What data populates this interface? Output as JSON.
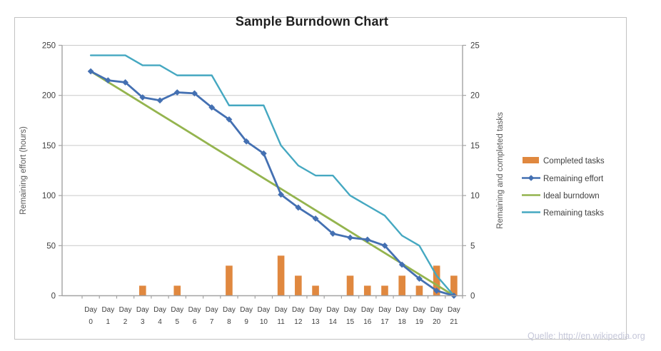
{
  "chart_data": {
    "type": "combo",
    "title": "Sample Burndown Chart",
    "ylabel_left": "Remaining effort (hours)",
    "ylabel_right": "Remaining and completed tasks",
    "categories": [
      "Day 0",
      "Day 1",
      "Day 2",
      "Day 3",
      "Day 4",
      "Day 5",
      "Day 6",
      "Day 7",
      "Day 8",
      "Day 9",
      "Day 10",
      "Day 11",
      "Day 12",
      "Day 13",
      "Day 14",
      "Day 15",
      "Day 16",
      "Day 17",
      "Day 18",
      "Day 19",
      "Day 20",
      "Day 21"
    ],
    "ylim_left": [
      0,
      250
    ],
    "yticks_left": [
      0,
      50,
      100,
      150,
      200,
      250
    ],
    "ylim_right": [
      0,
      25
    ],
    "yticks_right": [
      0,
      5,
      10,
      15,
      20,
      25
    ],
    "grid": true,
    "legend_position": "right",
    "series": [
      {
        "name": "Completed tasks",
        "type": "bar",
        "axis": "right",
        "color": "#e0883f",
        "values": [
          0,
          0,
          0,
          1,
          0,
          1,
          0,
          0,
          3,
          0,
          0,
          4,
          2,
          1,
          0,
          2,
          1,
          1,
          2,
          1,
          3,
          2
        ]
      },
      {
        "name": "Remaining effort",
        "type": "line",
        "marker": "diamond",
        "axis": "left",
        "color": "#4470b2",
        "values": [
          224,
          215,
          213,
          198,
          195,
          203,
          202,
          188,
          176,
          154,
          142,
          101,
          88,
          77,
          62,
          58,
          56,
          50,
          31,
          17,
          5,
          0
        ]
      },
      {
        "name": "Ideal burndown",
        "type": "line",
        "axis": "left",
        "color": "#94b44e",
        "values": [
          224,
          213.3,
          202.7,
          192,
          181.3,
          170.7,
          160,
          149.3,
          138.7,
          128,
          117.3,
          106.7,
          96,
          85.3,
          74.7,
          64,
          53.3,
          42.7,
          32,
          21.3,
          10.7,
          0
        ]
      },
      {
        "name": "Remaining tasks",
        "type": "line",
        "axis": "right",
        "color": "#45a8c1",
        "values": [
          24,
          24,
          24,
          23,
          23,
          22,
          22,
          22,
          19,
          19,
          19,
          15,
          13,
          12,
          12,
          10,
          9,
          8,
          6,
          5,
          2,
          0
        ]
      }
    ],
    "colors": {
      "grid": "#c9c9c9",
      "axis": "#a3a3a3",
      "tick_label": "#3f3f3f",
      "axis_title": "#595959",
      "title": "#1f1f1f",
      "attribution": "#c5c7d9"
    }
  },
  "footer": {
    "attribution": "Quelle: http://en.wikipedia.org"
  }
}
